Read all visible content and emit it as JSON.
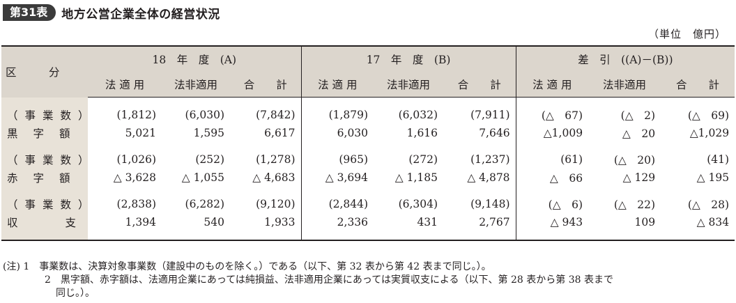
{
  "header": {
    "badge": "第31表",
    "title": "地方公営企業全体の経営状況"
  },
  "unit": "（単位　億円）",
  "table": {
    "row_header_label": "区　　　分",
    "groups": [
      "18　年　度　(A)",
      "17　年　度　(B)",
      "差　引　((A)－(B))"
    ],
    "subcols": [
      "法 適 用",
      "法非適用",
      "合　　計"
    ],
    "rows": [
      {
        "label": "（事業数）",
        "values": [
          "(1,812)",
          "(6,030)",
          "(7,842)",
          "(1,879)",
          "(6,032)",
          "(7,911)",
          "(△　67)",
          "(△　2)",
          "(△　69)"
        ]
      },
      {
        "label": "黒字額",
        "values": [
          "5,021",
          "1,595",
          "6,617",
          "6,030",
          "1,616",
          "7,646",
          "△1,009",
          "△　20",
          "△1,029"
        ]
      },
      {
        "label": "（事業数）",
        "values": [
          "(1,026)",
          "(252)",
          "(1,278)",
          "(965)",
          "(272)",
          "(1,237)",
          "(61)",
          "(△　20)",
          "(41)"
        ]
      },
      {
        "label": "赤字額",
        "values": [
          "△ 3,628",
          "△ 1,055",
          "△ 4,683",
          "△ 3,694",
          "△ 1,185",
          "△ 4,878",
          "△　66",
          "△ 129",
          "△ 195"
        ]
      },
      {
        "label": "（事業数）",
        "values": [
          "(2,838)",
          "(6,282)",
          "(9,120)",
          "(2,844)",
          "(6,304)",
          "(9,148)",
          "(△　6)",
          "(△　22)",
          "(△　28)"
        ]
      },
      {
        "label": "収支",
        "values": [
          "1,394",
          "540",
          "1,933",
          "2,336",
          "431",
          "2,767",
          "△ 943",
          "109",
          "△ 834"
        ]
      }
    ]
  },
  "notes": [
    "(注)  1　事業数は、決算対象事業数（建設中のものを除く。）である（以下、第 32 表から第 42 表まで同じ。）。",
    "2　黒字額、赤字額は、法適用企業にあっては純損益、法非適用企業にあっては実質収支による（以下、第 28 表から第 38 表まで",
    "同じ。）。"
  ]
}
